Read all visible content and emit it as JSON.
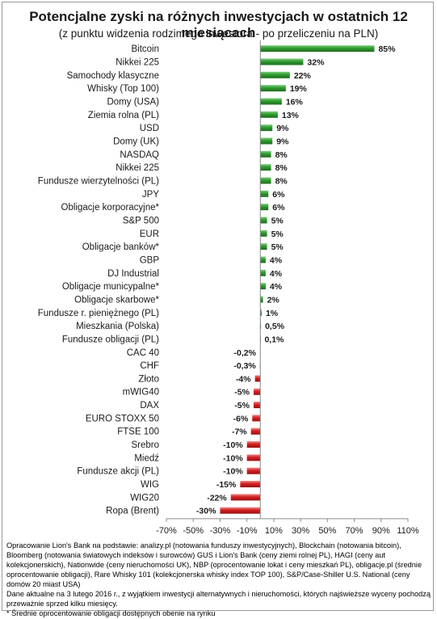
{
  "chart_data": {
    "type": "bar",
    "orientation": "horizontal",
    "title": "Potencjalne zyski na różnych inwestycjach w ostatnich 12 miesiącach",
    "subtitle": "(z punktu  widzenia rodzimego  inwestora - po przeliczeniu na PLN)",
    "categories": [
      "Bitcoin",
      "Nikkei 225",
      "Samochody klasyczne",
      "Whisky (Top 100)",
      "Domy (USA)",
      "Ziemia rolna (PL)",
      "USD",
      "Domy (UK)",
      "NASDAQ",
      "Nikkei 225",
      "Fundusze wierzytelności (PL)",
      "JPY",
      "Obligacje korporacyjne*",
      "S&P 500",
      "EUR",
      "Obligacje banków*",
      "GBP",
      "DJ Industrial",
      "Obligacje municypalne*",
      "Obligacje skarbowe*",
      "Fundusze r. pieniężnego (PL)",
      "Mieszkania (Polska)",
      "Fundusze obligacji (PL)",
      "CAC 40",
      "CHF",
      "Złoto",
      "mWIG40",
      "DAX",
      "EURO STOXX 50",
      "FTSE 100",
      "Srebro",
      "Miedź",
      "Fundusze akcji (PL)",
      "WIG",
      "WIG20",
      "Ropa (Brent)"
    ],
    "values": [
      85,
      32,
      22,
      19,
      16,
      13,
      9,
      9,
      8,
      8,
      8,
      6,
      6,
      5,
      5,
      5,
      4,
      4,
      4,
      2,
      1,
      0.5,
      0.1,
      -0.2,
      -0.3,
      -4,
      -5,
      -5,
      -6,
      -7,
      -10,
      -10,
      -10,
      -15,
      -22,
      -30
    ],
    "value_labels": [
      "85%",
      "32%",
      "22%",
      "19%",
      "16%",
      "13%",
      "9%",
      "9%",
      "8%",
      "8%",
      "8%",
      "6%",
      "6%",
      "5%",
      "5%",
      "5%",
      "4%",
      "4%",
      "4%",
      "2%",
      "1%",
      "0,5%",
      "0,1%",
      "-0,2%",
      "-0,3%",
      "-4%",
      "-5%",
      "-5%",
      "-6%",
      "-7%",
      "-10%",
      "-10%",
      "-10%",
      "-15%",
      "-22%",
      "-30%"
    ],
    "xlim": [
      -70,
      110
    ],
    "x_ticks": [
      -70,
      -50,
      -30,
      -10,
      10,
      30,
      50,
      70,
      90,
      110
    ],
    "x_tick_labels": [
      "-70%",
      "-50%",
      "-30%",
      "-10%",
      "10%",
      "30%",
      "50%",
      "70%",
      "90%",
      "110%"
    ],
    "grid": false,
    "colors": {
      "positive": "#2e9a2e",
      "negative": "#d11f1f"
    }
  },
  "notes": [
    "Opracowanie Lion's Bank na podstawie: analizy.pl (notowania funduszy inwestycyjnych), Blockchain (notowania bitcoin), Bloomberg (notowania światowych indeksów i surowców) GUS i Lion's Bank (ceny ziemi rolnej PL), HAGI (ceny aut kolekcjonerskich), Nationwide (ceny nieruchomości UK), NBP (oprocentowanie lokat i ceny mieszkań PL), obligacje.pl (średnie oprocentowanie obligacji), Rare Whisky 101 (kolekcjonerska whisky index TOP 100), S&P/Case-Shiller U.S. National (ceny domów 20 miast USA)",
    "Dane aktualne na 3 lutego 2016 r., z wyjątkiem inwestycji alternatywnych i nieruchomości, których najświeższe wyceny pochodzą przeważnie sprzed kilku miesięcy.",
    "* Średnie oprocentowanie obligacji dostępnych obenie na rynku"
  ]
}
